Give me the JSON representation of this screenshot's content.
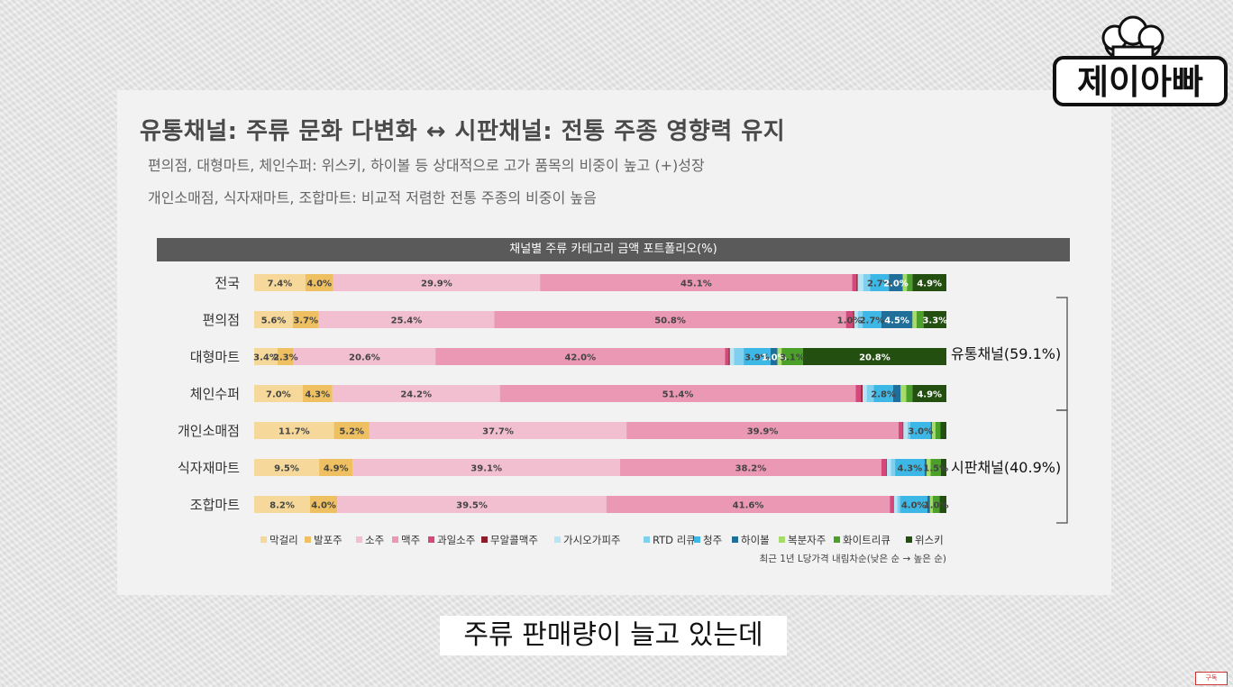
{
  "slide": {
    "title": "유통채널: 주류 문화 다변화 ↔ 시판채널: 전통 주종 영향력 유지",
    "subtitle1": "편의점, 대형마트, 체인수퍼: 위스키, 하이볼 등 상대적으로 고가 품목의 비중이 높고 (+)성장",
    "subtitle2": "개인소매점, 식자재마트, 조합마트: 비교적 저렴한 전통 주종의 비중이 높음"
  },
  "caption": "주류 판매량이 늘고 있는데",
  "logo": {
    "text": "제이아빠",
    "icon": "chef-hat-icon"
  },
  "badge": {
    "text": "구독"
  },
  "chart_data": {
    "type": "bar",
    "orientation": "horizontal-stacked-100",
    "title": "채널별 주류 카테고리 금액 포트폴리오(%)",
    "note": "최근 1년 L당가격 내림차순(낮은 순 → 높은 순)",
    "categories": [
      "전국",
      "편의점",
      "대형마트",
      "체인수퍼",
      "개인소매점",
      "식자재마트",
      "조합마트"
    ],
    "series": [
      {
        "name": "막걸리",
        "color": "#f6d99a",
        "values": [
          7.4,
          5.6,
          3.4,
          7.0,
          11.7,
          9.5,
          8.2
        ]
      },
      {
        "name": "발포주",
        "color": "#efc061",
        "values": [
          4.0,
          3.7,
          2.3,
          4.3,
          5.2,
          4.9,
          4.0
        ]
      },
      {
        "name": "소주",
        "color": "#f2bfd1",
        "values": [
          29.9,
          25.4,
          20.6,
          24.2,
          37.7,
          39.1,
          39.5
        ]
      },
      {
        "name": "맥주",
        "color": "#ea98b4",
        "values": [
          45.1,
          50.8,
          42.0,
          51.4,
          39.9,
          38.2,
          41.6
        ]
      },
      {
        "name": "과일소주",
        "color": "#d4487c",
        "values": [
          0.6,
          1.0,
          0.5,
          0.8,
          0.6,
          0.7,
          0.5
        ]
      },
      {
        "name": "무알콜맥주",
        "color": "#8e1c2a",
        "values": [
          0.2,
          0.2,
          0.2,
          0.2,
          0.1,
          0.1,
          0.1
        ]
      },
      {
        "name": "가시오가피주",
        "color": "#b8e4f4",
        "values": [
          0.8,
          0.5,
          0.6,
          0.6,
          0.6,
          0.6,
          0.5
        ]
      },
      {
        "name": "RTD 리큐",
        "color": "#7fcfee",
        "values": [
          1.0,
          0.7,
          1.4,
          1.0,
          0.4,
          0.6,
          0.4
        ]
      },
      {
        "name": "청주",
        "color": "#3db8e6",
        "values": [
          2.7,
          2.7,
          3.9,
          2.8,
          3.0,
          4.3,
          4.0
        ]
      },
      {
        "name": "하이볼",
        "color": "#1f6f9a",
        "values": [
          2.0,
          4.5,
          1.0,
          1.1,
          0.2,
          0.3,
          0.4
        ]
      },
      {
        "name": "복분자주",
        "color": "#a6dc6a",
        "values": [
          0.6,
          0.6,
          0.6,
          0.8,
          0.5,
          0.6,
          0.4
        ]
      },
      {
        "name": "화이트리큐",
        "color": "#4aa028",
        "values": [
          0.8,
          1.0,
          3.1,
          0.9,
          0.7,
          1.5,
          1.0
        ]
      },
      {
        "name": "위스키",
        "color": "#234f11",
        "values": [
          4.9,
          3.3,
          20.8,
          4.9,
          0.9,
          0.8,
          1.0
        ]
      }
    ],
    "data_labels": [
      {
        "row": 0,
        "series": 0,
        "text": "7.4%"
      },
      {
        "row": 0,
        "series": 1,
        "text": "4.0%"
      },
      {
        "row": 0,
        "series": 2,
        "text": "29.9%"
      },
      {
        "row": 0,
        "series": 3,
        "text": "45.1%"
      },
      {
        "row": 0,
        "series": 8,
        "text": "2.7%"
      },
      {
        "row": 0,
        "series": 9,
        "text": "2.0%"
      },
      {
        "row": 0,
        "series": 12,
        "text": "4.9%"
      },
      {
        "row": 1,
        "series": 0,
        "text": "5.6%"
      },
      {
        "row": 1,
        "series": 1,
        "text": "3.7%"
      },
      {
        "row": 1,
        "series": 2,
        "text": "25.4%"
      },
      {
        "row": 1,
        "series": 3,
        "text": "50.8%"
      },
      {
        "row": 1,
        "series": 4,
        "text": "1.0%"
      },
      {
        "row": 1,
        "series": 8,
        "text": "2.7%"
      },
      {
        "row": 1,
        "series": 9,
        "text": "4.5%"
      },
      {
        "row": 1,
        "series": 12,
        "text": "3.3%"
      },
      {
        "row": 2,
        "series": 0,
        "text": "3.4%"
      },
      {
        "row": 2,
        "series": 1,
        "text": "2.3%"
      },
      {
        "row": 2,
        "series": 2,
        "text": "20.6%"
      },
      {
        "row": 2,
        "series": 3,
        "text": "42.0%"
      },
      {
        "row": 2,
        "series": 8,
        "text": "3.9%"
      },
      {
        "row": 2,
        "series": 9,
        "text": "1.0%"
      },
      {
        "row": 2,
        "series": 11,
        "text": "3.1%"
      },
      {
        "row": 2,
        "series": 12,
        "text": "20.8%"
      },
      {
        "row": 3,
        "series": 0,
        "text": "7.0%"
      },
      {
        "row": 3,
        "series": 1,
        "text": "4.3%"
      },
      {
        "row": 3,
        "series": 2,
        "text": "24.2%"
      },
      {
        "row": 3,
        "series": 3,
        "text": "51.4%"
      },
      {
        "row": 3,
        "series": 8,
        "text": "2.8%"
      },
      {
        "row": 3,
        "series": 12,
        "text": "4.9%"
      },
      {
        "row": 4,
        "series": 0,
        "text": "11.7%"
      },
      {
        "row": 4,
        "series": 1,
        "text": "5.2%"
      },
      {
        "row": 4,
        "series": 2,
        "text": "37.7%"
      },
      {
        "row": 4,
        "series": 3,
        "text": "39.9%"
      },
      {
        "row": 4,
        "series": 8,
        "text": "3.0%"
      },
      {
        "row": 5,
        "series": 0,
        "text": "9.5%"
      },
      {
        "row": 5,
        "series": 1,
        "text": "4.9%"
      },
      {
        "row": 5,
        "series": 2,
        "text": "39.1%"
      },
      {
        "row": 5,
        "series": 3,
        "text": "38.2%"
      },
      {
        "row": 5,
        "series": 8,
        "text": "4.3%"
      },
      {
        "row": 5,
        "series": 11,
        "text": "1.5%"
      },
      {
        "row": 6,
        "series": 0,
        "text": "8.2%"
      },
      {
        "row": 6,
        "series": 1,
        "text": "4.0%"
      },
      {
        "row": 6,
        "series": 2,
        "text": "39.5%"
      },
      {
        "row": 6,
        "series": 3,
        "text": "41.6%"
      },
      {
        "row": 6,
        "series": 8,
        "text": "4.0%"
      },
      {
        "row": 6,
        "series": 11,
        "text": "1.0%"
      }
    ],
    "groups": [
      {
        "label": "유통채널(59.1%)",
        "rows": [
          0,
          3
        ]
      },
      {
        "label": "시판채널(40.9%)",
        "rows": [
          4,
          6
        ]
      }
    ],
    "legend_position": "bottom-right",
    "xlim": [
      0,
      100
    ],
    "grid": false
  }
}
